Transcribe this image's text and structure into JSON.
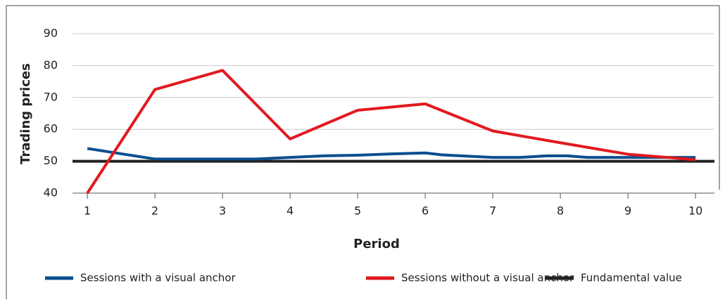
{
  "chart_data": {
    "type": "line",
    "ylabel": "Trading prices",
    "xlabel": "Period",
    "xlim": [
      0.78,
      10.28
    ],
    "ylim": [
      40,
      90
    ],
    "xticks": [
      1,
      2,
      3,
      4,
      5,
      6,
      7,
      8,
      9,
      10
    ],
    "yticks": [
      40,
      50,
      60,
      70,
      80,
      90
    ],
    "grid": true,
    "series": [
      {
        "name": "Sessions with a visual anchor",
        "color": "#0b4f8f",
        "x": [
          1,
          2,
          3,
          3.5,
          4,
          4.5,
          5,
          5.5,
          6,
          6.25,
          7,
          7.4,
          7.8,
          8.1,
          8.4,
          9,
          10
        ],
        "values": [
          54,
          50.7,
          50.7,
          50.7,
          51.2,
          51.7,
          51.9,
          52.3,
          52.6,
          52,
          51.2,
          51.2,
          51.7,
          51.7,
          51.2,
          51.2,
          51.2
        ]
      },
      {
        "name": "Sessions without a visual anchor",
        "color": "#e2191f",
        "x": [
          1,
          2,
          3,
          4,
          4.5,
          5,
          6,
          7,
          8,
          9,
          10
        ],
        "values": [
          40,
          72.5,
          78.5,
          57,
          61.5,
          66,
          68,
          59.5,
          55.8,
          52.2,
          50.5
        ]
      }
    ],
    "reference_line": {
      "name": "Fundamental value",
      "value": 50,
      "color": "#222222"
    }
  }
}
